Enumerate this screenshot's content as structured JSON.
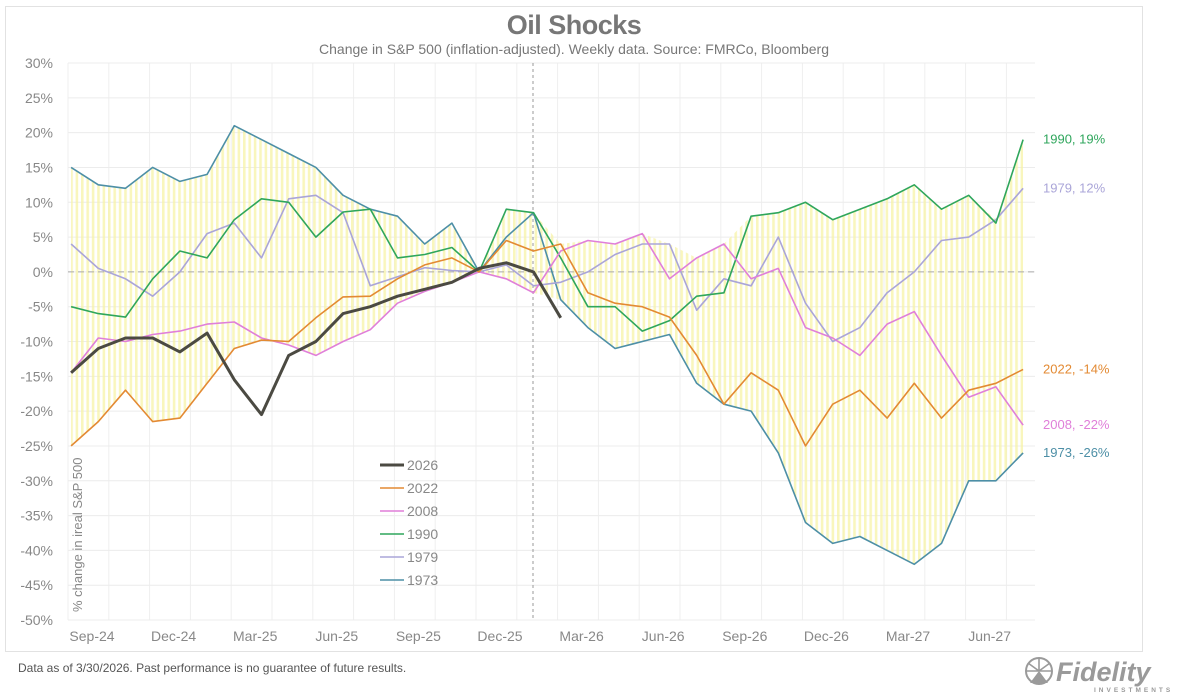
{
  "header": {
    "title": "Oil Shocks",
    "subtitle": "Change in S&P 500 (inflation-adjusted).  Weekly data.  Source: FMRCo, Bloomberg"
  },
  "footer": {
    "note": "Data as of 3/30/2026. Past performance is no guarantee of future results."
  },
  "logo": {
    "name": "Fidelity",
    "sub": "INVESTMENTS",
    "color": "#9a9a9a"
  },
  "chart_data": {
    "type": "line",
    "title": "Oil Shocks",
    "subtitle": "Change in S&P 500 (inflation-adjusted).  Weekly data.  Source: FMRCo, Bloomberg",
    "xlabel": "",
    "ylabel": "% change in ireal S&P 500",
    "ylim": [
      -50,
      30
    ],
    "yticks": [
      30,
      25,
      20,
      15,
      10,
      5,
      0,
      -5,
      -10,
      -15,
      -20,
      -25,
      -30,
      -35,
      -40,
      -45,
      -50
    ],
    "ytick_labels": [
      "30%",
      "25%",
      "20%",
      "15%",
      "10%",
      "5%",
      "0%",
      "-5%",
      "-10%",
      "-15%",
      "-20%",
      "-25%",
      "-30%",
      "-35%",
      "-40%",
      "-45%",
      "-50%"
    ],
    "xticks": [
      "2024-09-01",
      "2024-12-01",
      "2025-03-01",
      "2025-06-01",
      "2025-09-01",
      "2025-12-01",
      "2026-03-01",
      "2026-06-01",
      "2026-09-01",
      "2026-12-01",
      "2027-03-01",
      "2027-06-01"
    ],
    "xtick_labels": [
      "Sep-24",
      "Dec-24",
      "Mar-25",
      "Jun-25",
      "Sep-25",
      "Dec-25",
      "Mar-26",
      "Jun-26",
      "Sep-26",
      "Dec-26",
      "Mar-27",
      "Jun-27"
    ],
    "grid": true,
    "legend": "center-bottom",
    "shading": "range between historical episodes",
    "x": [
      "2024-08-08",
      "2024-09-08",
      "2024-10-08",
      "2024-11-08",
      "2024-12-08",
      "2025-01-08",
      "2025-02-08",
      "2025-03-08",
      "2025-04-08",
      "2025-05-08",
      "2025-06-08",
      "2025-07-08",
      "2025-08-08",
      "2025-09-08",
      "2025-10-08",
      "2025-11-08",
      "2025-12-08",
      "2026-01-08",
      "2026-02-08",
      "2026-03-08",
      "2026-04-08",
      "2026-05-08",
      "2026-06-08",
      "2026-07-08",
      "2026-08-08",
      "2026-09-08",
      "2026-10-08",
      "2026-11-08",
      "2026-12-08",
      "2027-01-08",
      "2027-02-08",
      "2027-03-08",
      "2027-04-08",
      "2027-05-08",
      "2027-06-08",
      "2027-07-08"
    ],
    "series": [
      {
        "name": "2026",
        "color": "#4b4a42",
        "width": 3,
        "end_label": "",
        "values": [
          -14.5,
          -11,
          -9.5,
          -9.5,
          -11.5,
          -8.8,
          -15.5,
          -20.5,
          -12,
          -10,
          -6,
          -5,
          -3.5,
          -2.5,
          -1.5,
          0.5,
          1.3,
          0,
          -6.6,
          null,
          null,
          null,
          null,
          null,
          null,
          null,
          null,
          null,
          null,
          null,
          null,
          null,
          null,
          null,
          null,
          null
        ]
      },
      {
        "name": "2022",
        "color": "#e38a33",
        "width": 1.6,
        "end_label": "2022, -14%",
        "values": [
          -25,
          -21.5,
          -17,
          -21.5,
          -21,
          -16,
          -11,
          -9.8,
          -10,
          -6.6,
          -3.6,
          -3.5,
          -1,
          1,
          2,
          0,
          4.5,
          3,
          4,
          -3,
          -4.5,
          -5,
          -6.5,
          -12,
          -19,
          -14.5,
          -17,
          -25,
          -19,
          -17,
          -21,
          -16,
          -21,
          -17,
          -16,
          -14
        ]
      },
      {
        "name": "2008",
        "color": "#e07fd9",
        "width": 1.6,
        "end_label": "2008, -22%",
        "values": [
          -14.5,
          -9.5,
          -10,
          -9,
          -8.5,
          -7.5,
          -7.2,
          -9.5,
          -10.5,
          -12,
          -10,
          -8.3,
          -4.5,
          -2.8,
          -1.5,
          0,
          -1,
          -3,
          3,
          4.5,
          4,
          5.5,
          -1,
          2,
          4,
          -1,
          0.5,
          -8,
          -9.5,
          -12,
          -7.5,
          -5.7,
          -12,
          -18,
          -16.5,
          -22
        ]
      },
      {
        "name": "1990",
        "color": "#2fa65c",
        "width": 1.6,
        "end_label": "1990, 19%",
        "values": [
          -5,
          -6,
          -6.5,
          -1,
          3,
          2,
          7.5,
          10.5,
          10,
          5,
          8.6,
          9,
          2,
          2.5,
          3.5,
          0,
          9,
          8.5,
          2,
          -5,
          -5,
          -8.5,
          -7,
          -3.5,
          -3,
          8,
          8.5,
          10,
          7.5,
          9,
          10.5,
          12.5,
          9,
          11,
          7,
          19
        ]
      },
      {
        "name": "1979",
        "color": "#aaa5d8",
        "width": 1.6,
        "end_label": "1979, 12%",
        "values": [
          4,
          0.5,
          -1,
          -3.5,
          0,
          5.5,
          7,
          2,
          10.5,
          11,
          8.5,
          -2,
          -0.7,
          0.6,
          0.2,
          0,
          1,
          -2,
          -1.5,
          0,
          2.5,
          4,
          4,
          -5.5,
          -1,
          -2,
          5,
          -4.5,
          -10,
          -8,
          -3,
          0,
          4.5,
          5,
          7.5,
          12
        ]
      },
      {
        "name": "1973",
        "color": "#4d8fa6",
        "width": 1.6,
        "end_label": "1973, -26%",
        "values": [
          15,
          12.5,
          12,
          15,
          13,
          14,
          21,
          19,
          17,
          15,
          11,
          9,
          8,
          4,
          7,
          0,
          5,
          8.5,
          -4,
          -8,
          -11,
          -10,
          -9,
          -16,
          -19,
          -20,
          -26,
          -36,
          -39,
          -38,
          -40,
          -42,
          -39,
          -30,
          -30,
          -26
        ]
      }
    ]
  }
}
